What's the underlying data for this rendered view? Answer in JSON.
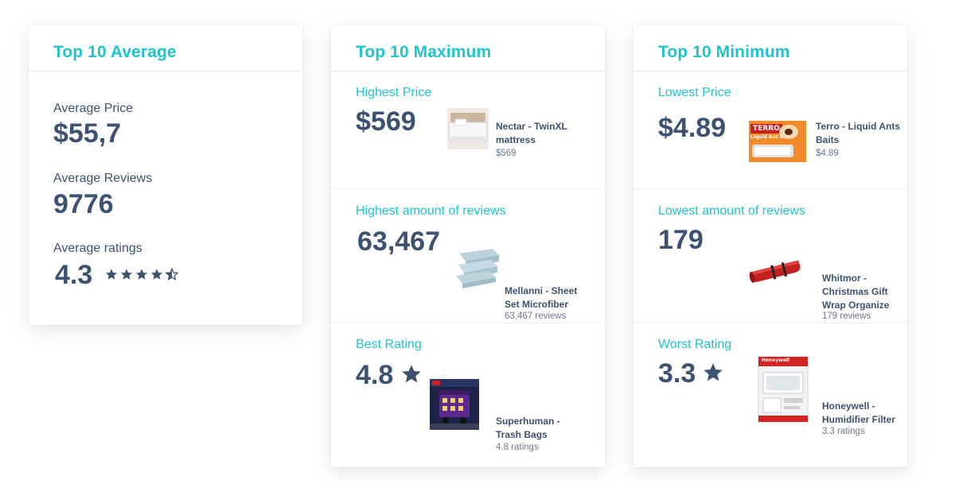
{
  "colors": {
    "accent": "#1fc4cf",
    "text": "#3d5170",
    "muted": "#6c7a8e"
  },
  "average": {
    "title": "Top 10 Average",
    "price_label": "Average Price",
    "price_value": "$55,7",
    "reviews_label": "Average Reviews",
    "reviews_value": "9776",
    "ratings_label": "Average ratings",
    "ratings_value": "4.3",
    "stars_rating": 4.3
  },
  "maximum": {
    "title": "Top 10 Maximum",
    "price": {
      "label": "Highest Price",
      "value": "$569",
      "product": "Nectar - TwinXL mattress",
      "sub": "$569"
    },
    "reviews": {
      "label": "Highest amount of reviews",
      "value": "63,467",
      "product": "Mellanni - Sheet Set Microfiber",
      "sub": "63,467 reviews"
    },
    "rating": {
      "label": "Best Rating",
      "value": "4.8",
      "product": "Superhuman - Trash Bags",
      "sub": "4.8 ratings"
    }
  },
  "minimum": {
    "title": "Top 10 Minimum",
    "price": {
      "label": "Lowest Price",
      "value": "$4.89",
      "product": "Terro - Liquid Ants Baits",
      "sub": "$4.89",
      "thumb_brand": "TERRO",
      "thumb_text": "Liquid Ant Baits"
    },
    "reviews": {
      "label": "Lowest amount of reviews",
      "value": "179",
      "product": "Whitmor - Christmas Gift Wrap Organize",
      "sub": "179 reviews"
    },
    "rating": {
      "label": "Worst Rating",
      "value": "3.3",
      "product": "Honeywell - Humidifier Filter",
      "sub": "3.3 ratings",
      "thumb_brand": "Honeywell"
    }
  }
}
